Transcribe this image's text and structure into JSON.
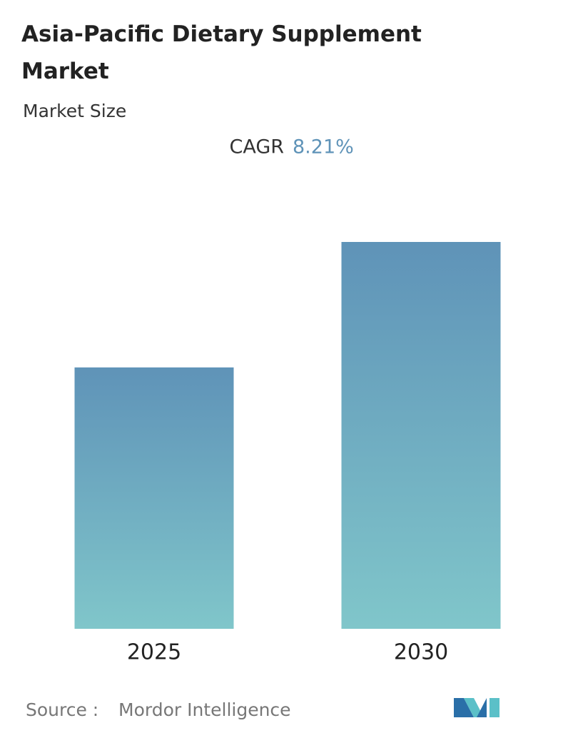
{
  "chart_data": {
    "type": "bar",
    "title": "Asia-Pacific Dietary Supplement Market",
    "subtitle": "Market Size",
    "cagr_label": "CAGR",
    "cagr_value": "8.21%",
    "categories": [
      "2025",
      "2030"
    ],
    "values": [
      10,
      14.8
    ],
    "color_top": "#5f93b8",
    "color_bottom": "#80c6ca",
    "source_label": "Source :",
    "source": "Mordor Intelligence"
  }
}
